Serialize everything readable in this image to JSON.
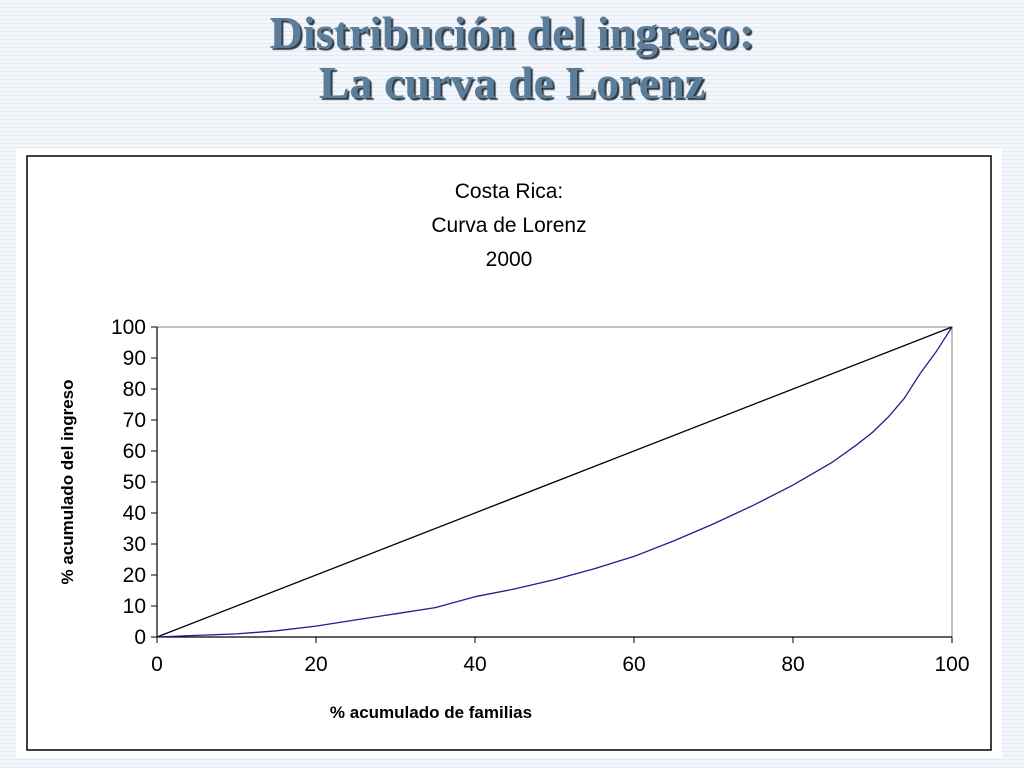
{
  "slide": {
    "title_line1": "Distribución del ingreso:",
    "title_line2": "La curva de Lorenz"
  },
  "chart_data": {
    "type": "line",
    "title_lines": [
      "Costa Rica:",
      "Curva de Lorenz",
      "2000"
    ],
    "xlabel": "% acumulado de familias",
    "ylabel": "% acumulado del ingreso",
    "xlim": [
      0,
      100
    ],
    "ylim": [
      0,
      100
    ],
    "x_ticks": [
      0,
      20,
      40,
      60,
      80,
      100
    ],
    "y_ticks": [
      0,
      10,
      20,
      30,
      40,
      50,
      60,
      70,
      80,
      90,
      100
    ],
    "grid": false,
    "legend": "none",
    "series": [
      {
        "color": "#000000",
        "x": [
          0,
          100
        ],
        "y": [
          0,
          100
        ]
      },
      {
        "color": "#1f1f8c",
        "x": [
          0,
          5,
          10,
          15,
          20,
          25,
          30,
          35,
          40,
          45,
          50,
          55,
          60,
          65,
          70,
          75,
          80,
          85,
          88,
          90,
          92,
          94,
          96,
          98,
          100
        ],
        "y": [
          0,
          0.5,
          1,
          2,
          3.5,
          5.5,
          7.5,
          9.5,
          13,
          15.5,
          18.5,
          22,
          26,
          31,
          36.5,
          42.5,
          49,
          56.5,
          62,
          66,
          71,
          77,
          85,
          92,
          100
        ]
      }
    ]
  }
}
